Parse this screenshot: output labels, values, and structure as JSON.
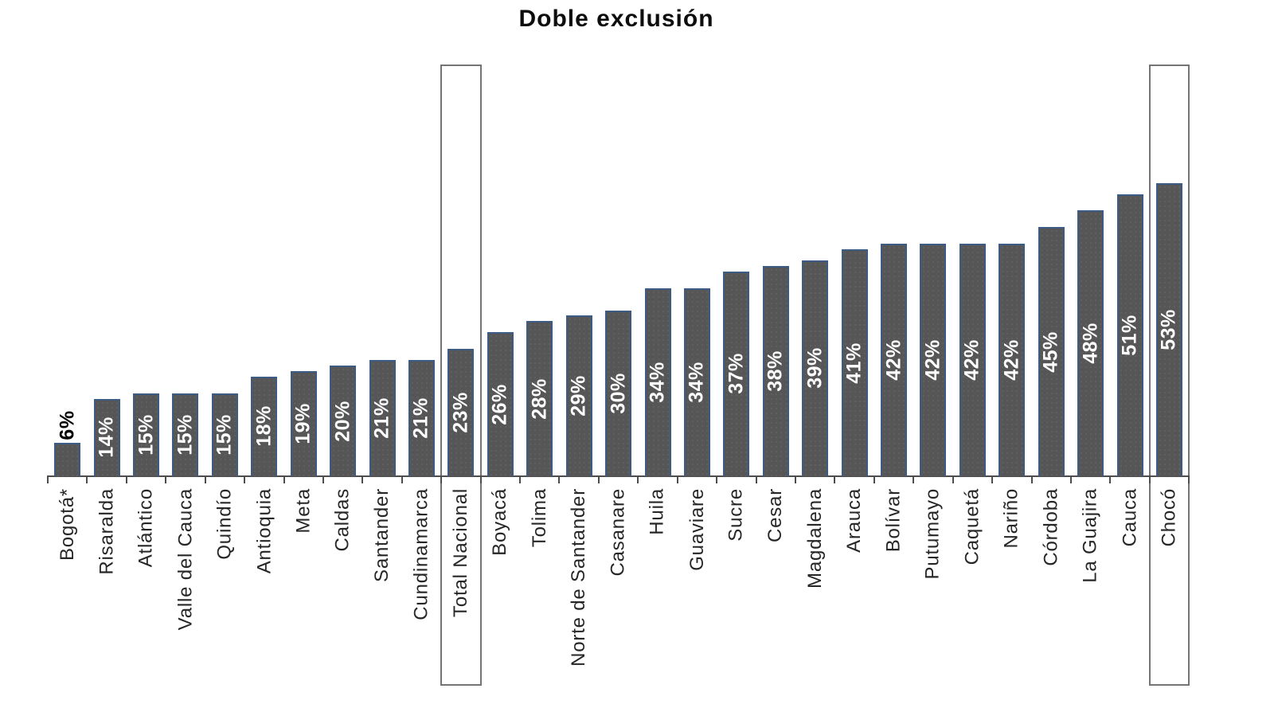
{
  "chart_data": {
    "type": "bar",
    "title": "Doble exclusión",
    "categories": [
      "Bogotá*",
      "Risaralda",
      "Atlántico",
      "Valle del Cauca",
      "Quindío",
      "Antioquia",
      "Meta",
      "Caldas",
      "Santander",
      "Cundinamarca",
      "Total Nacional",
      "Boyacá",
      "Tolima",
      "Norte de Santander",
      "Casanare",
      "Huila",
      "Guaviare",
      "Sucre",
      "Cesar",
      "Magdalena",
      "Arauca",
      "Bolívar",
      "Putumayo",
      "Caquetá",
      "Nariño",
      "Córdoba",
      "La Guajira",
      "Cauca",
      "Chocó"
    ],
    "values": [
      6,
      14,
      15,
      15,
      15,
      18,
      19,
      20,
      21,
      21,
      23,
      26,
      28,
      29,
      30,
      34,
      34,
      37,
      38,
      39,
      41,
      42,
      42,
      42,
      42,
      45,
      48,
      51,
      53
    ],
    "unit": "%",
    "ylim": [
      0,
      75
    ],
    "grid": false,
    "legend": false,
    "xlabel": "",
    "ylabel": "",
    "value_label_placement": "inside-center, rotated 90° CCW; first bar label outside above bar",
    "category_label_placement": "below axis, rotated 90° CCW",
    "highlighted_categories": [
      "Total Nacional",
      "Chocó"
    ],
    "colors": {
      "bar_fill": "#565656",
      "bar_border": "#3d5c85",
      "value_label_inside": "#ffffff",
      "value_label_outside": "#000000",
      "highlight_box_border": "#757575",
      "axis": "#4d4d4d",
      "category_label": "#262626",
      "title": "#0d0d0d"
    }
  }
}
